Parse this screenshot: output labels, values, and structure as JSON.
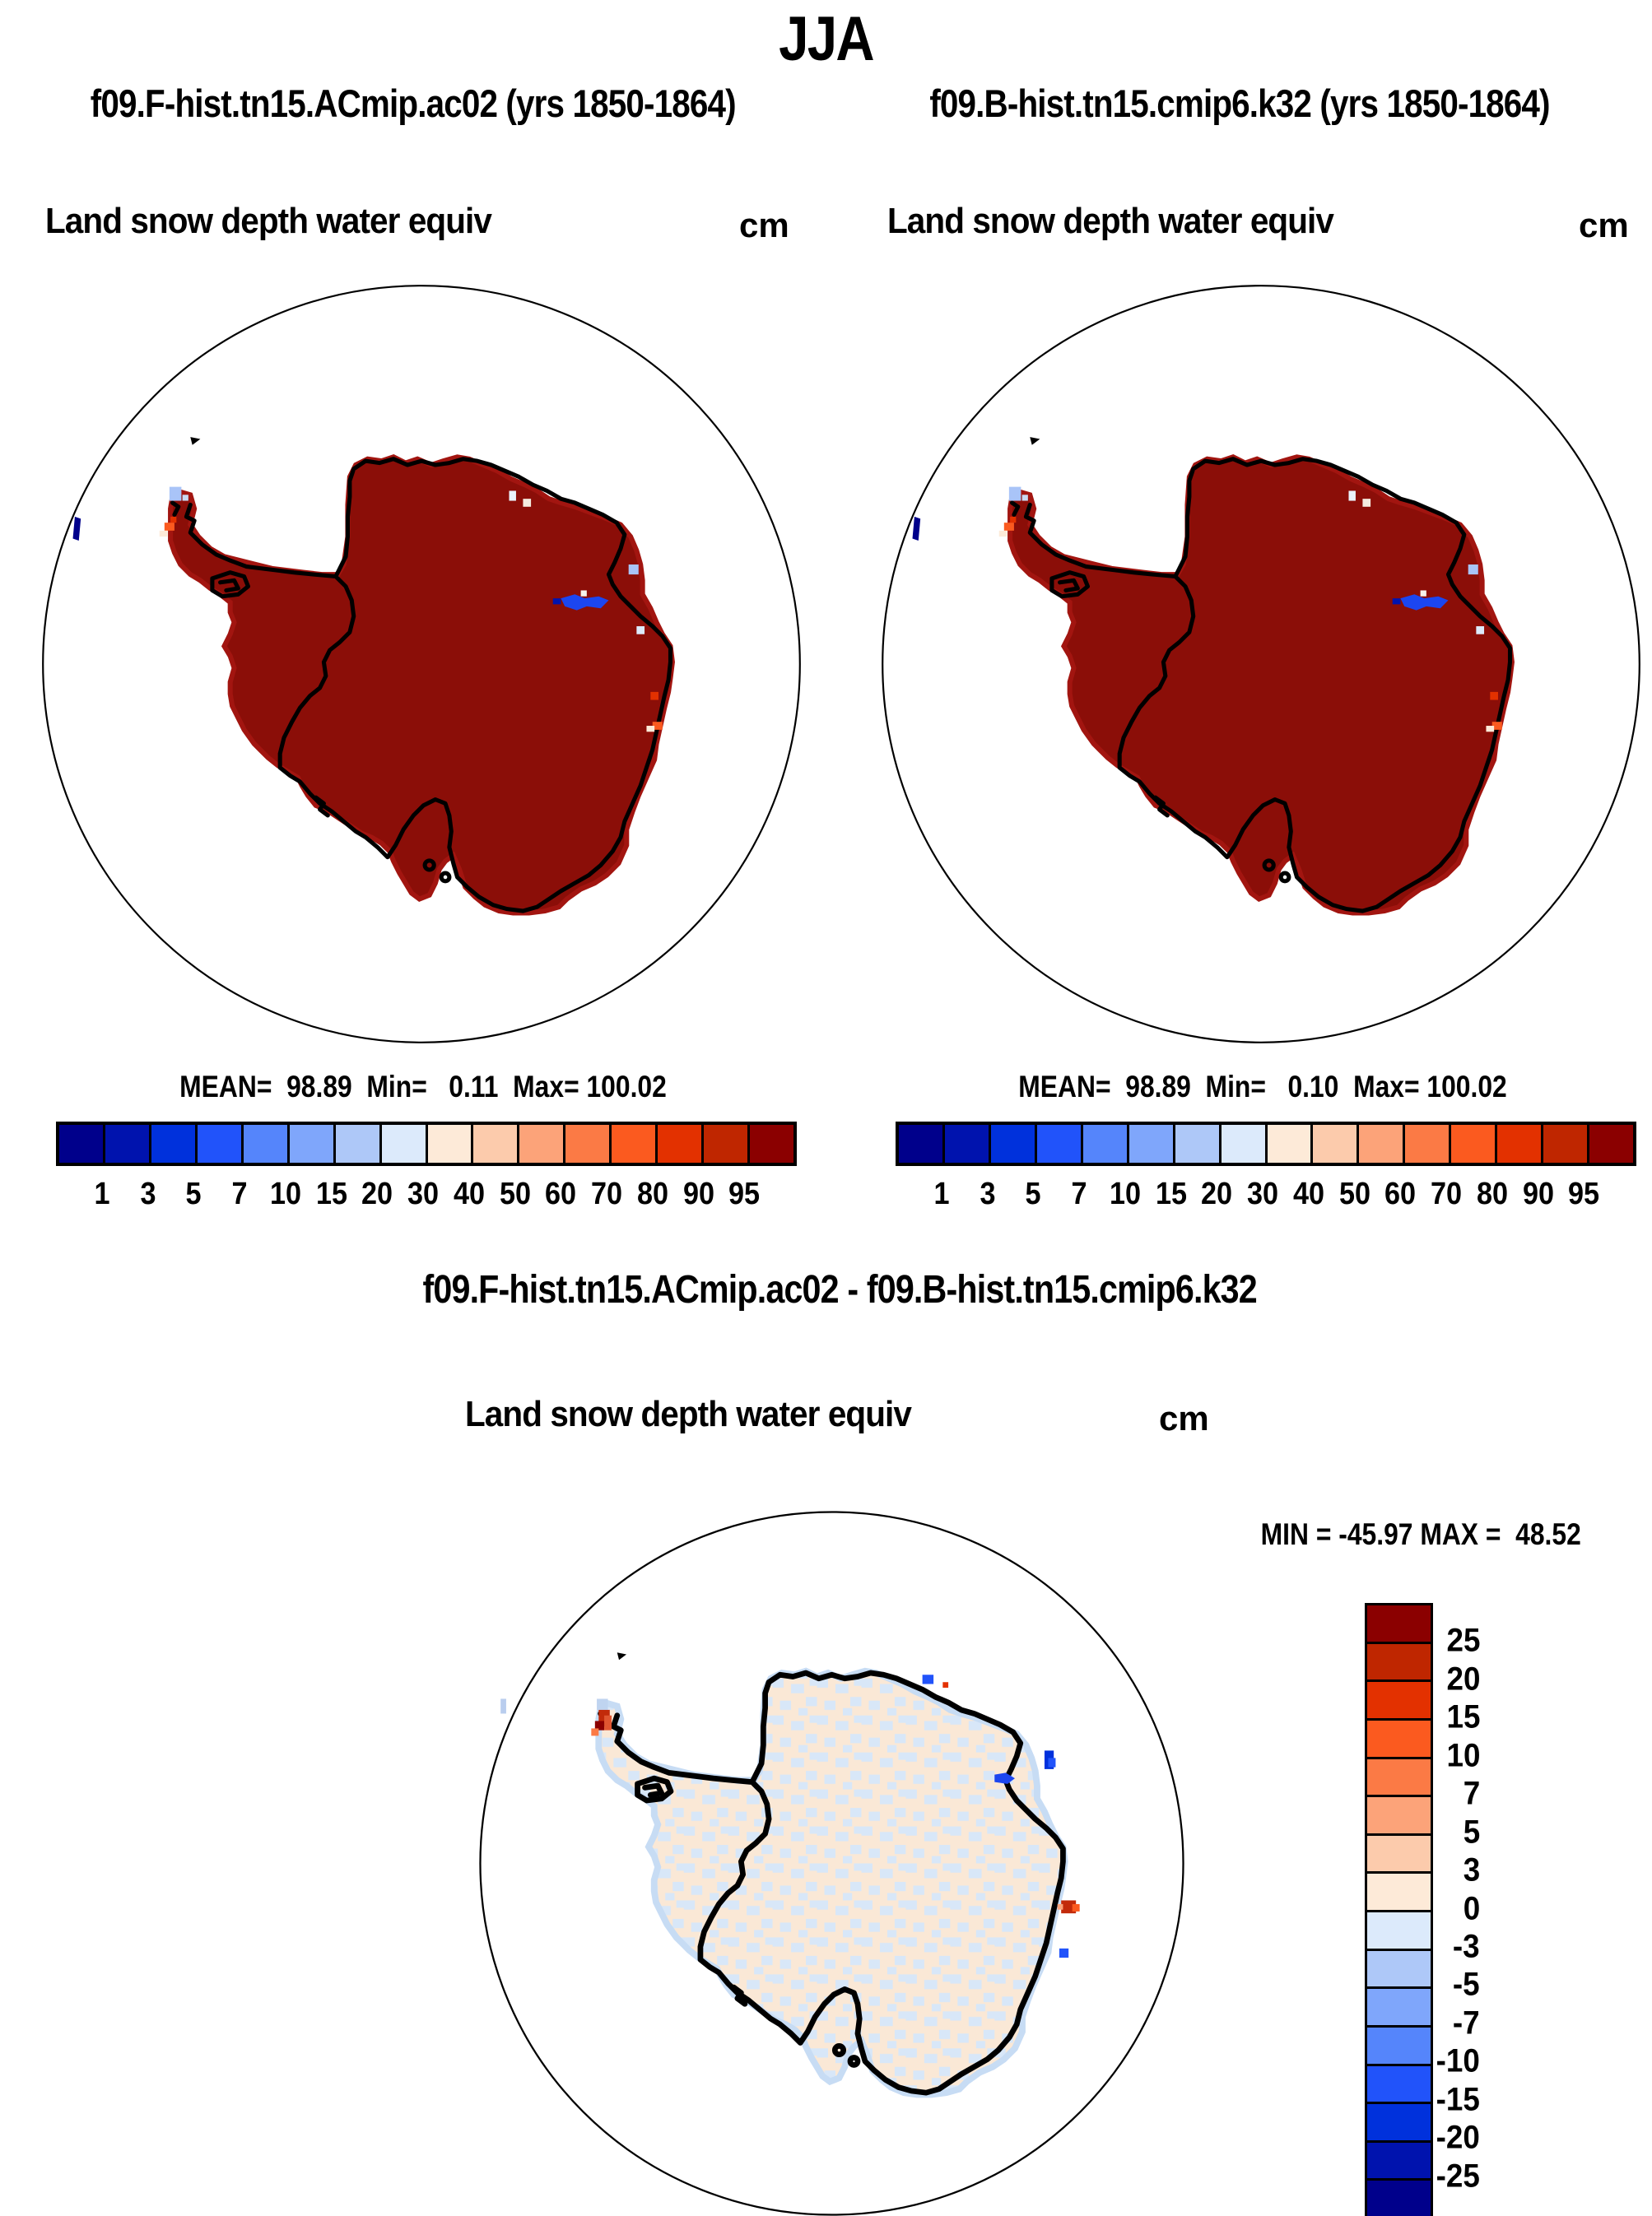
{
  "header": {
    "season_title": "JJA"
  },
  "panels": {
    "left": {
      "title": "f09.F-hist.tn15.ACmip.ac02 (yrs 1850-1864)",
      "field": "Land snow depth water equiv",
      "units": "cm",
      "stats": "MEAN=  98.89  Min=   0.11  Max= 100.02"
    },
    "right": {
      "title": "f09.B-hist.tn15.cmip6.k32 (yrs 1850-1864)",
      "field": "Land snow depth water equiv",
      "units": "cm",
      "stats": "MEAN=  98.89  Min=   0.10  Max= 100.02"
    },
    "diff": {
      "title": "f09.F-hist.tn15.ACmip.ac02 - f09.B-hist.tn15.cmip6.k32",
      "field": "Land snow depth water equiv",
      "units": "cm",
      "minmax": "MIN = -45.97 MAX =  48.52"
    }
  },
  "colorbar": {
    "colors": [
      "#00008B",
      "#0013AE",
      "#0031DC",
      "#2153FA",
      "#5585FB",
      "#7FA6FB",
      "#AEC8F8",
      "#DCEAFB",
      "#FDEAD8",
      "#FCCBAC",
      "#FCA379",
      "#FB7A45",
      "#FB5A1F",
      "#E33100",
      "#BF2600",
      "#8B0000"
    ],
    "ticks": [
      "1",
      "3",
      "5",
      "7",
      "10",
      "15",
      "20",
      "30",
      "40",
      "50",
      "60",
      "70",
      "80",
      "90",
      "95"
    ]
  },
  "diff_colorbar": {
    "colors": [
      "#8B0000",
      "#BF2600",
      "#E33100",
      "#FB5A1F",
      "#FB7A45",
      "#FCA379",
      "#FCCBAC",
      "#FDEAD8",
      "#DCEAFB",
      "#AEC8F8",
      "#7FA6FB",
      "#5585FB",
      "#2153FA",
      "#0031DC",
      "#0013AE",
      "#00008B"
    ],
    "ticks": [
      "25",
      "20",
      "15",
      "10",
      "7",
      "5",
      "3",
      "0",
      "-3",
      "-5",
      "-7",
      "-10",
      "-15",
      "-20",
      "-25"
    ]
  },
  "chart_data": [
    {
      "type": "heatmap",
      "subtype": "south-polar-stereographic-map",
      "title": "f09.F-hist.tn15.ACmip.ac02 (yrs 1850-1864)",
      "variable": "Land snow depth water equiv",
      "units": "cm",
      "season": "JJA",
      "stats": {
        "mean": 98.89,
        "min": 0.11,
        "max": 100.02
      },
      "level_bounds": [
        1,
        3,
        5,
        7,
        10,
        15,
        20,
        30,
        40,
        50,
        60,
        70,
        80,
        90,
        95
      ],
      "legend_position": "bottom-horizontal",
      "notes": "Antarctic continent almost entirely in top bin (>95 cm, dark red); small anomalies: light-blue and orange cells at Antarctic Peninsula tip, white cells on north coast, blue cells near Amery region, orange cells on east coast, navy cells at far-left map edge"
    },
    {
      "type": "heatmap",
      "subtype": "south-polar-stereographic-map",
      "title": "f09.B-hist.tn15.cmip6.k32 (yrs 1850-1864)",
      "variable": "Land snow depth water equiv",
      "units": "cm",
      "season": "JJA",
      "stats": {
        "mean": 98.89,
        "min": 0.1,
        "max": 100.02
      },
      "level_bounds": [
        1,
        3,
        5,
        7,
        10,
        15,
        20,
        30,
        40,
        50,
        60,
        70,
        80,
        90,
        95
      ],
      "legend_position": "bottom-horizontal",
      "notes": "Nearly identical to left panel"
    },
    {
      "type": "heatmap",
      "subtype": "south-polar-stereographic-map difference",
      "title": "f09.F-hist.tn15.ACmip.ac02 - f09.B-hist.tn15.cmip6.k32",
      "variable": "Land snow depth water equiv",
      "units": "cm",
      "stats": {
        "min": -45.97,
        "max": 48.52
      },
      "level_bounds": [
        25,
        20,
        15,
        10,
        7,
        5,
        3,
        0,
        -3,
        -5,
        -7,
        -10,
        -15,
        -20,
        -25
      ],
      "legend_position": "right-vertical",
      "notes": "Differences mostly within ±3 cm (mottled cream/pale-blue); dark-red cluster at Peninsula tip, blue cells near Amery and east coast, red spot on east coast"
    }
  ]
}
